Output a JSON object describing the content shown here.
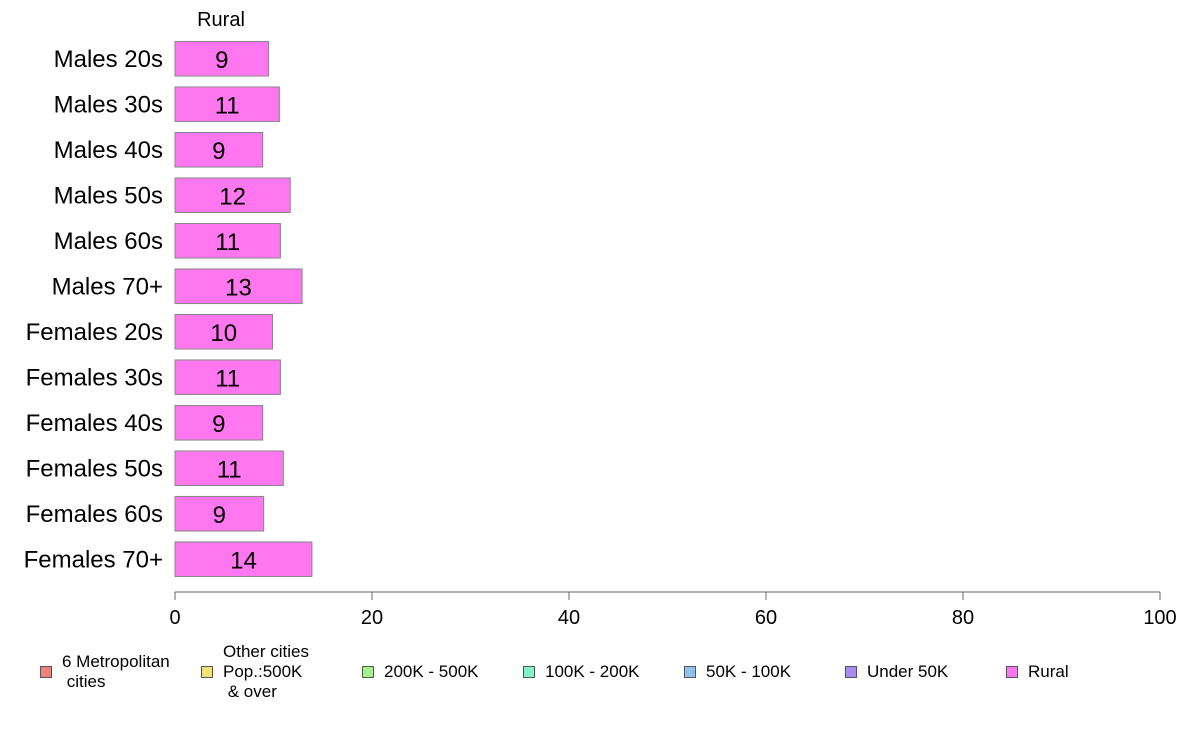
{
  "chart_data": {
    "type": "bar",
    "orientation": "horizontal",
    "panel_title": "Rural",
    "categories": [
      "Males 20s",
      "Males 30s",
      "Males 40s",
      "Males 50s",
      "Males 60s",
      "Males 70+",
      "Females 20s",
      "Females 30s",
      "Females 40s",
      "Females 50s",
      "Females 60s",
      "Females 70+"
    ],
    "values": [
      9.5,
      10.6,
      8.9,
      11.7,
      10.7,
      12.9,
      9.9,
      10.7,
      8.9,
      11.0,
      9.0,
      13.9
    ],
    "value_labels": [
      "9",
      "11",
      "9",
      "12",
      "11",
      "13",
      "10",
      "11",
      "9",
      "11",
      "9",
      "14"
    ],
    "xlim": [
      0,
      100
    ],
    "xticks": [
      "0",
      "20",
      "40",
      "60",
      "80",
      "100"
    ],
    "bar_color": "#ff77ee",
    "bar_edge_color": "#888888",
    "grid": false,
    "legend_position": "bottom",
    "legend": [
      {
        "label": "6 Metropolitan\n cities",
        "color": "#f08080"
      },
      {
        "label": "Other cities\nPop.:500K\n & over",
        "color": "#f5e07a"
      },
      {
        "label": "200K - 500K",
        "color": "#a2f28a"
      },
      {
        "label": "100K - 200K",
        "color": "#80f2c8"
      },
      {
        "label": "50K - 100K",
        "color": "#8cc4f0"
      },
      {
        "label": "Under 50K",
        "color": "#a98cf0"
      },
      {
        "label": "Rural",
        "color": "#ff77ee"
      }
    ]
  }
}
